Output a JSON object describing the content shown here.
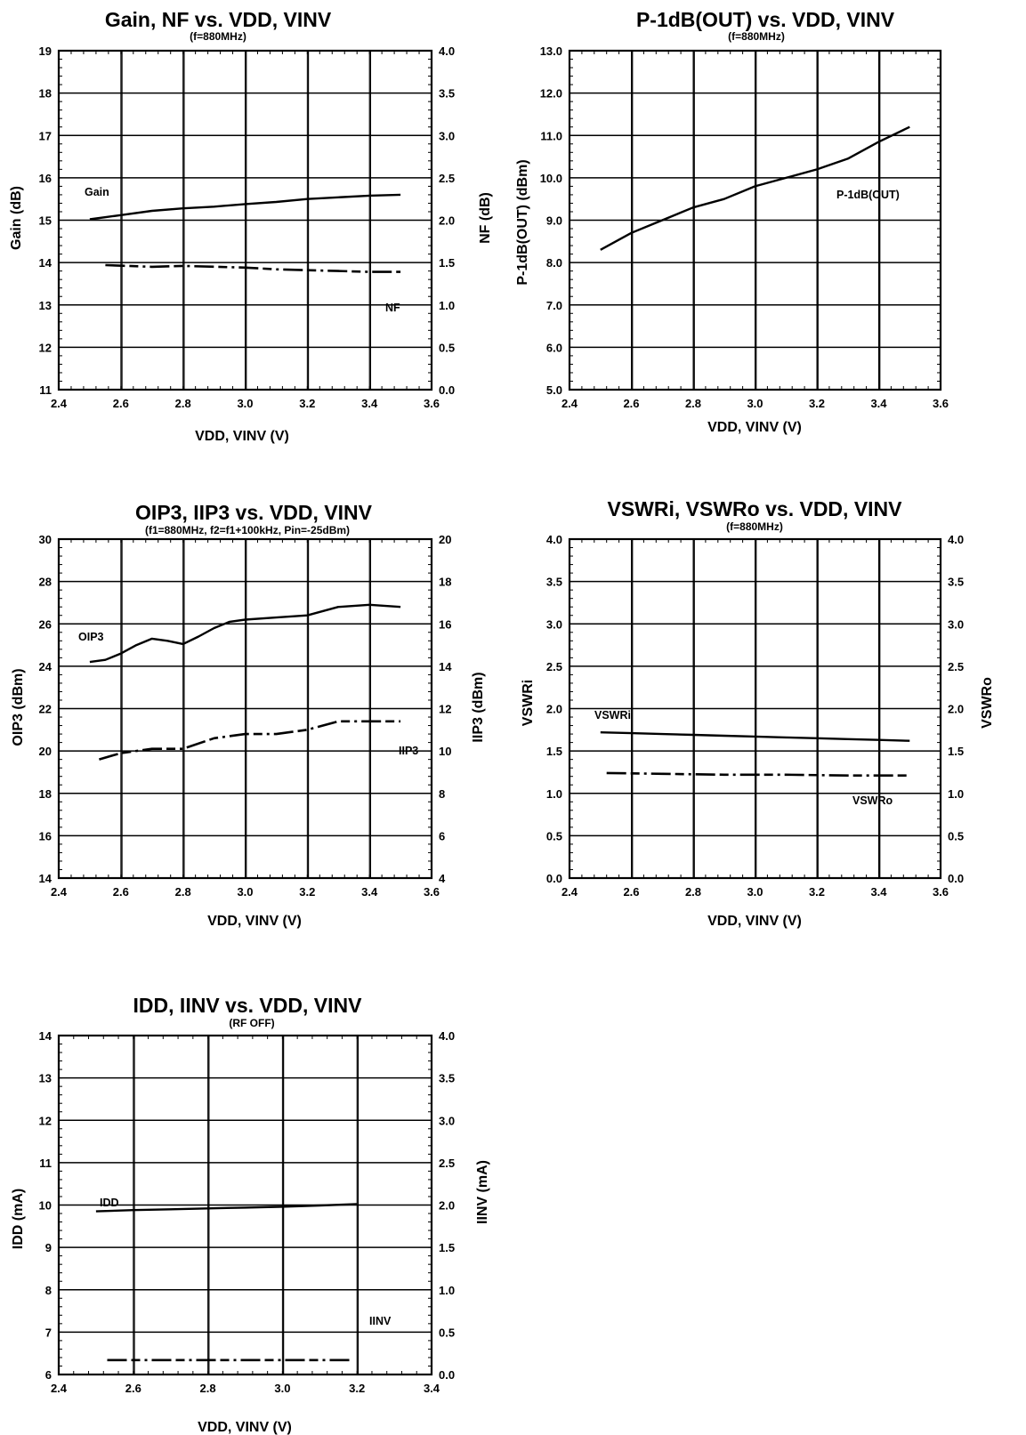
{
  "chart_data": [
    {
      "id": "gain_nf",
      "type": "line",
      "title": "Gain, NF vs. VDD, VINV",
      "subtitle": "(f=880MHz)",
      "xlabel": "VDD, VINV (V)",
      "ylabel": "Gain (dB)",
      "y2label": "NF (dB)",
      "xlim": [
        2.4,
        3.6
      ],
      "ylim": [
        11,
        19
      ],
      "y2lim": [
        0.0,
        4.0
      ],
      "grid": true,
      "x_ticks": [
        "2.4",
        "2.6",
        "2.8",
        "3.0",
        "3.2",
        "3.4",
        "3.6"
      ],
      "y_ticks": [
        "11",
        "12",
        "13",
        "14",
        "15",
        "16",
        "17",
        "18",
        "19"
      ],
      "y2_ticks": [
        "0.0",
        "0.5",
        "1.0",
        "1.5",
        "2.0",
        "2.5",
        "3.0",
        "3.5",
        "4.0"
      ],
      "series": [
        {
          "name": "Gain",
          "axis": "left",
          "style": "solid",
          "x": [
            2.5,
            2.6,
            2.7,
            2.8,
            2.9,
            3.0,
            3.1,
            3.2,
            3.3,
            3.4,
            3.5
          ],
          "y": [
            15.02,
            15.12,
            15.22,
            15.28,
            15.32,
            15.38,
            15.43,
            15.5,
            15.54,
            15.58,
            15.6
          ]
        },
        {
          "name": "NF",
          "axis": "right",
          "style": "dash",
          "x": [
            2.55,
            2.7,
            2.8,
            3.0,
            3.1,
            3.2,
            3.3,
            3.4,
            3.5
          ],
          "y": [
            1.47,
            1.45,
            1.46,
            1.44,
            1.42,
            1.41,
            1.4,
            1.39,
            1.39
          ]
        }
      ],
      "annotations": [
        "Gain",
        "NF"
      ]
    },
    {
      "id": "p1db",
      "type": "line",
      "title": "P-1dB(OUT) vs. VDD, VINV",
      "subtitle": "(f=880MHz)",
      "xlabel": "VDD, VINV (V)",
      "ylabel": "P-1dB(OUT) (dBm)",
      "xlim": [
        2.4,
        3.6
      ],
      "ylim": [
        5.0,
        13.0
      ],
      "grid": true,
      "x_ticks": [
        "2.4",
        "2.6",
        "2.8",
        "3.0",
        "3.2",
        "3.4",
        "3.6"
      ],
      "y_ticks": [
        "5.0",
        "6.0",
        "7.0",
        "8.0",
        "9.0",
        "10.0",
        "11.0",
        "12.0",
        "13.0"
      ],
      "series": [
        {
          "name": "P-1dB(OUT)",
          "axis": "left",
          "style": "solid",
          "x": [
            2.5,
            2.6,
            2.7,
            2.8,
            2.9,
            3.0,
            3.1,
            3.2,
            3.3,
            3.4,
            3.5
          ],
          "y": [
            8.3,
            8.7,
            9.0,
            9.3,
            9.5,
            9.8,
            10.0,
            10.2,
            10.45,
            10.85,
            11.2
          ]
        }
      ],
      "annotations": [
        "P-1dB(OUT)"
      ]
    },
    {
      "id": "oip3",
      "type": "line",
      "title": "OIP3, IIP3 vs. VDD, VINV",
      "subtitle": "(f1=880MHz, f2=f1+100kHz, Pin=-25dBm)",
      "xlabel": "VDD, VINV (V)",
      "ylabel": "OIP3 (dBm)",
      "y2label": "IIP3 (dBm)",
      "xlim": [
        2.4,
        3.6
      ],
      "ylim": [
        14,
        30
      ],
      "y2lim": [
        4,
        20
      ],
      "grid": true,
      "x_ticks": [
        "2.4",
        "2.6",
        "2.8",
        "3.0",
        "3.2",
        "3.4",
        "3.6"
      ],
      "y_ticks": [
        "14",
        "16",
        "18",
        "20",
        "22",
        "24",
        "26",
        "28",
        "30"
      ],
      "y2_ticks": [
        "4",
        "6",
        "8",
        "10",
        "12",
        "14",
        "16",
        "18",
        "20"
      ],
      "series": [
        {
          "name": "OIP3",
          "axis": "left",
          "style": "solid",
          "x": [
            2.5,
            2.55,
            2.6,
            2.65,
            2.7,
            2.75,
            2.8,
            2.85,
            2.9,
            2.95,
            3.0,
            3.1,
            3.2,
            3.3,
            3.4,
            3.5
          ],
          "y": [
            24.2,
            24.3,
            24.6,
            25.0,
            25.3,
            25.2,
            25.05,
            25.4,
            25.8,
            26.1,
            26.2,
            26.3,
            26.4,
            26.8,
            26.9,
            26.8
          ]
        },
        {
          "name": "IIP3",
          "axis": "right",
          "style": "dash",
          "x": [
            2.53,
            2.6,
            2.7,
            2.8,
            2.9,
            3.0,
            3.1,
            3.2,
            3.3,
            3.4,
            3.5
          ],
          "y": [
            9.6,
            9.9,
            10.1,
            10.1,
            10.6,
            10.8,
            10.8,
            11.0,
            11.4,
            11.4,
            11.4
          ]
        }
      ],
      "annotations": [
        "OIP3",
        "IIP3"
      ]
    },
    {
      "id": "vswr",
      "type": "line",
      "title": "VSWRi, VSWRo vs. VDD, VINV",
      "subtitle": "(f=880MHz)",
      "xlabel": "VDD, VINV (V)",
      "ylabel": "VSWRi",
      "y2label": "VSWRo",
      "xlim": [
        2.4,
        3.6
      ],
      "ylim": [
        0.0,
        4.0
      ],
      "y2lim": [
        0.0,
        4.0
      ],
      "grid": true,
      "x_ticks": [
        "2.4",
        "2.6",
        "2.8",
        "3.0",
        "3.2",
        "3.4",
        "3.6"
      ],
      "y_ticks": [
        "0.0",
        "0.5",
        "1.0",
        "1.5",
        "2.0",
        "2.5",
        "3.0",
        "3.5",
        "4.0"
      ],
      "y2_ticks": [
        "0.0",
        "0.5",
        "1.0",
        "1.5",
        "2.0",
        "2.5",
        "3.0",
        "3.5",
        "4.0"
      ],
      "series": [
        {
          "name": "VSWRi",
          "axis": "left",
          "style": "solid",
          "x": [
            2.5,
            2.6,
            2.7,
            2.8,
            2.9,
            3.0,
            3.1,
            3.2,
            3.3,
            3.4,
            3.5
          ],
          "y": [
            1.72,
            1.71,
            1.7,
            1.69,
            1.68,
            1.67,
            1.66,
            1.65,
            1.64,
            1.63,
            1.62
          ]
        },
        {
          "name": "VSWRo",
          "axis": "right",
          "style": "dash",
          "x": [
            2.52,
            2.7,
            2.9,
            3.1,
            3.3,
            3.5
          ],
          "y": [
            1.24,
            1.23,
            1.22,
            1.22,
            1.21,
            1.21
          ]
        }
      ],
      "annotations": [
        "VSWRi",
        "VSWRo"
      ]
    },
    {
      "id": "idd",
      "type": "line",
      "title": "IDD, IINV vs. VDD, VINV",
      "subtitle": "(RF OFF)",
      "xlabel": "VDD, VINV (V)",
      "ylabel": "IDD (mA)",
      "y2label": "IINV (mA)",
      "xlim": [
        2.4,
        3.4
      ],
      "ylim": [
        6,
        14
      ],
      "y2lim": [
        0.0,
        4.0
      ],
      "grid": true,
      "x_ticks": [
        "2.4",
        "2.6",
        "2.8",
        "3.0",
        "3.2",
        "3.4"
      ],
      "y_ticks": [
        "6",
        "7",
        "8",
        "9",
        "10",
        "11",
        "12",
        "13",
        "14"
      ],
      "y2_ticks": [
        "0.0",
        "0.5",
        "1.0",
        "1.5",
        "2.0",
        "2.5",
        "3.0",
        "3.5",
        "4.0"
      ],
      "series": [
        {
          "name": "IDD",
          "axis": "left",
          "style": "solid",
          "x": [
            2.5,
            2.6,
            2.7,
            2.8,
            2.9,
            3.0,
            3.1,
            3.2
          ],
          "y": [
            9.85,
            9.88,
            9.9,
            9.92,
            9.94,
            9.96,
            9.99,
            10.02
          ]
        },
        {
          "name": "IINV",
          "axis": "right",
          "style": "dash",
          "x": [
            2.53,
            2.7,
            2.9,
            3.1,
            3.18
          ],
          "y": [
            0.17,
            0.17,
            0.17,
            0.17,
            0.17
          ]
        }
      ],
      "annotations": [
        "IDD",
        "IINV"
      ]
    }
  ]
}
